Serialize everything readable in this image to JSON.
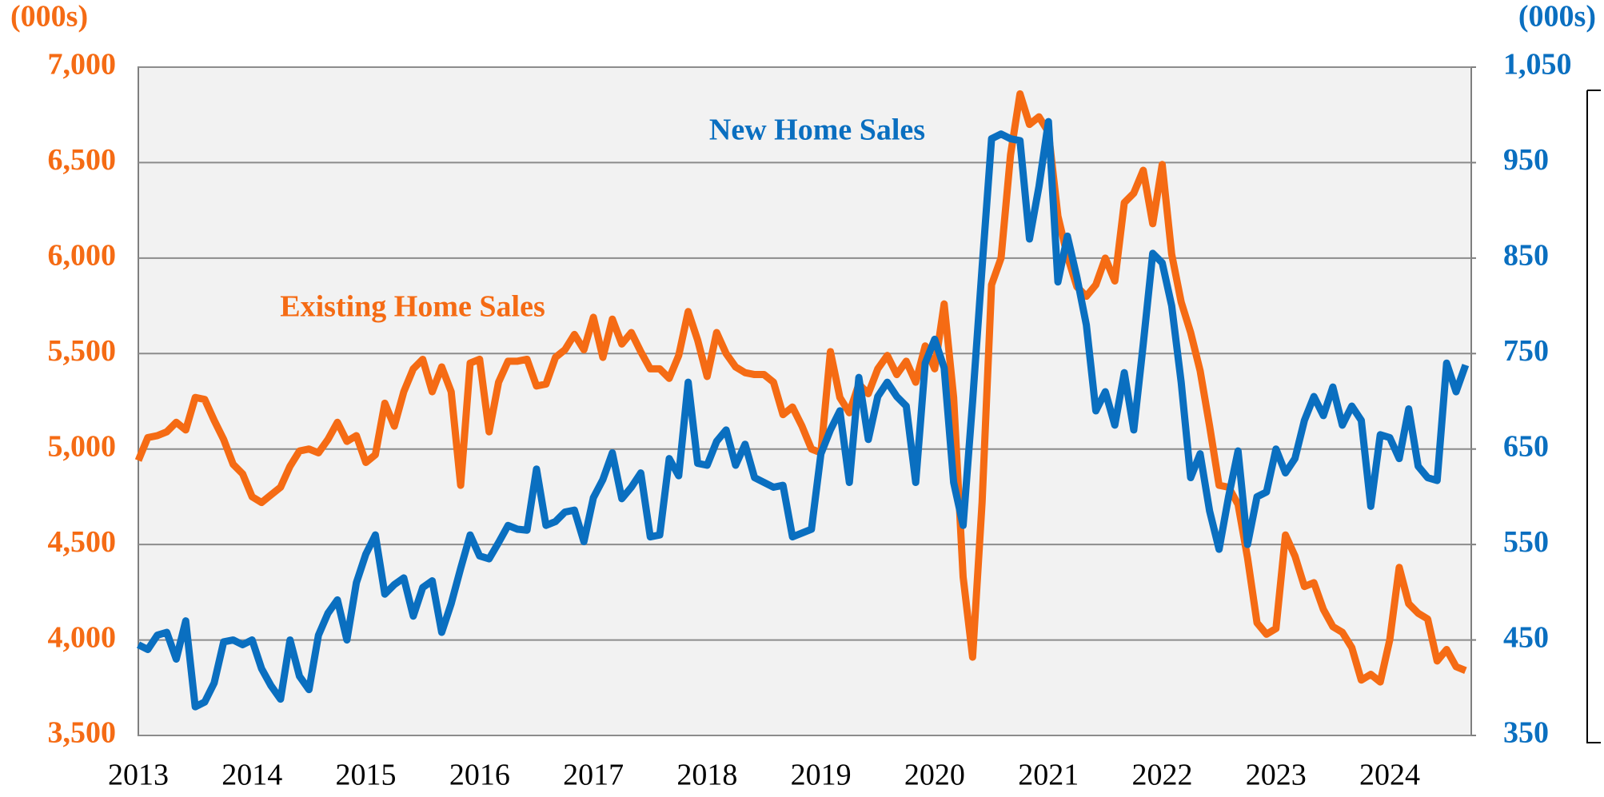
{
  "chart_data": {
    "type": "line",
    "annotations": [
      "Existing Home Sales",
      "New Home Sales"
    ],
    "y_unit_label": "(000s)",
    "y2_unit_label": "(000s)",
    "categories": [
      "2013",
      null,
      null,
      null,
      null,
      null,
      null,
      null,
      null,
      null,
      null,
      null,
      "2014",
      null,
      null,
      null,
      null,
      null,
      null,
      null,
      null,
      null,
      null,
      null,
      "2015",
      null,
      null,
      null,
      null,
      null,
      null,
      null,
      null,
      null,
      null,
      null,
      "2016",
      null,
      null,
      null,
      null,
      null,
      null,
      null,
      null,
      null,
      null,
      null,
      "2017",
      null,
      null,
      null,
      null,
      null,
      null,
      null,
      null,
      null,
      null,
      null,
      "2018",
      null,
      null,
      null,
      null,
      null,
      null,
      null,
      null,
      null,
      null,
      null,
      "2019",
      null,
      null,
      null,
      null,
      null,
      null,
      null,
      null,
      null,
      null,
      null,
      "2020",
      null,
      null,
      null,
      null,
      null,
      null,
      null,
      null,
      null,
      null,
      null,
      "2021",
      null,
      null,
      null,
      null,
      null,
      null,
      null,
      null,
      null,
      null,
      null,
      "2022",
      null,
      null,
      null,
      null,
      null,
      null,
      null,
      null,
      null,
      null,
      null,
      "2023",
      null,
      null,
      null,
      null,
      null,
      null,
      null,
      null,
      null,
      null,
      null,
      "2024",
      null,
      null,
      null,
      null,
      null,
      null,
      null,
      null
    ],
    "series": [
      {
        "name": "Existing Home Sales",
        "color": "#f56b14",
        "axis": "y",
        "values": [
          4940,
          5060,
          5070,
          5090,
          5140,
          5100,
          5270,
          5260,
          5150,
          5050,
          4920,
          4870,
          4750,
          4720,
          4760,
          4800,
          4910,
          4990,
          5000,
          4980,
          5050,
          5140,
          5040,
          5070,
          4930,
          4970,
          5240,
          5120,
          5300,
          5420,
          5470,
          5300,
          5430,
          5300,
          4810,
          5450,
          5470,
          5090,
          5350,
          5460,
          5460,
          5470,
          5330,
          5340,
          5480,
          5520,
          5600,
          5520,
          5690,
          5480,
          5680,
          5550,
          5610,
          5510,
          5420,
          5420,
          5370,
          5490,
          5720,
          5570,
          5380,
          5610,
          5500,
          5430,
          5400,
          5390,
          5390,
          5350,
          5180,
          5220,
          5120,
          5000,
          4980,
          5510,
          5270,
          5190,
          5340,
          5290,
          5420,
          5490,
          5390,
          5460,
          5350,
          5540,
          5420,
          5760,
          5270,
          4330,
          3910,
          4720,
          5860,
          6000,
          6540,
          6860,
          6700,
          6740,
          6660,
          6220,
          6010,
          5850,
          5800,
          5860,
          6000,
          5880,
          6290,
          6340,
          6460,
          6180,
          6490,
          6020,
          5770,
          5610,
          5410,
          5120,
          4810,
          4800,
          4710,
          4430,
          4090,
          4030,
          4060,
          4550,
          4440,
          4280,
          4300,
          4160,
          4070,
          4040,
          3960,
          3790,
          3820,
          3780,
          4000,
          4380,
          4190,
          4140,
          4110,
          3890,
          3950,
          3860,
          3840
        ]
      },
      {
        "name": "New Home Sales",
        "color": "#0a6fc0",
        "axis": "y2",
        "values": [
          445,
          440,
          455,
          458,
          430,
          470,
          380,
          385,
          405,
          448,
          450,
          445,
          450,
          420,
          402,
          388,
          450,
          412,
          398,
          455,
          478,
          492,
          450,
          510,
          540,
          560,
          498,
          508,
          515,
          475,
          505,
          512,
          458,
          488,
          525,
          560,
          538,
          535,
          552,
          570,
          566,
          565,
          629,
          570,
          574,
          584,
          586,
          553,
          599,
          618,
          646,
          598,
          610,
          625,
          558,
          560,
          640,
          622,
          720,
          635,
          633,
          658,
          670,
          633,
          655,
          620,
          615,
          610,
          612,
          558,
          562,
          566,
          645,
          670,
          690,
          615,
          725,
          660,
          705,
          720,
          705,
          695,
          615,
          740,
          765,
          735,
          615,
          570,
          700,
          840,
          975,
          980,
          975,
          973,
          870,
          925,
          993,
          825,
          873,
          830,
          780,
          690,
          710,
          675,
          730,
          670,
          760,
          855,
          845,
          800,
          720,
          620,
          645,
          585,
          545,
          600,
          648,
          550,
          600,
          605,
          650,
          625,
          640,
          680,
          705,
          685,
          715,
          675,
          695,
          680,
          590,
          665,
          662,
          640,
          692,
          632,
          620,
          617,
          740,
          710,
          738
        ]
      }
    ],
    "ylim": [
      3500,
      7000
    ],
    "yticks": [
      {
        "value": 3500,
        "label": "3,500"
      },
      {
        "value": 4000,
        "label": "4,000"
      },
      {
        "value": 4500,
        "label": "4,500"
      },
      {
        "value": 5000,
        "label": "5,000"
      },
      {
        "value": 5500,
        "label": "5,500"
      },
      {
        "value": 6000,
        "label": "6,000"
      },
      {
        "value": 6500,
        "label": "6,500"
      },
      {
        "value": 7000,
        "label": "7,000"
      }
    ],
    "y2lim": [
      350,
      1050
    ],
    "y2ticks": [
      350,
      450,
      550,
      650,
      750,
      850,
      950,
      {
        "value": 1050,
        "label": "1,050"
      }
    ],
    "grid": true
  }
}
